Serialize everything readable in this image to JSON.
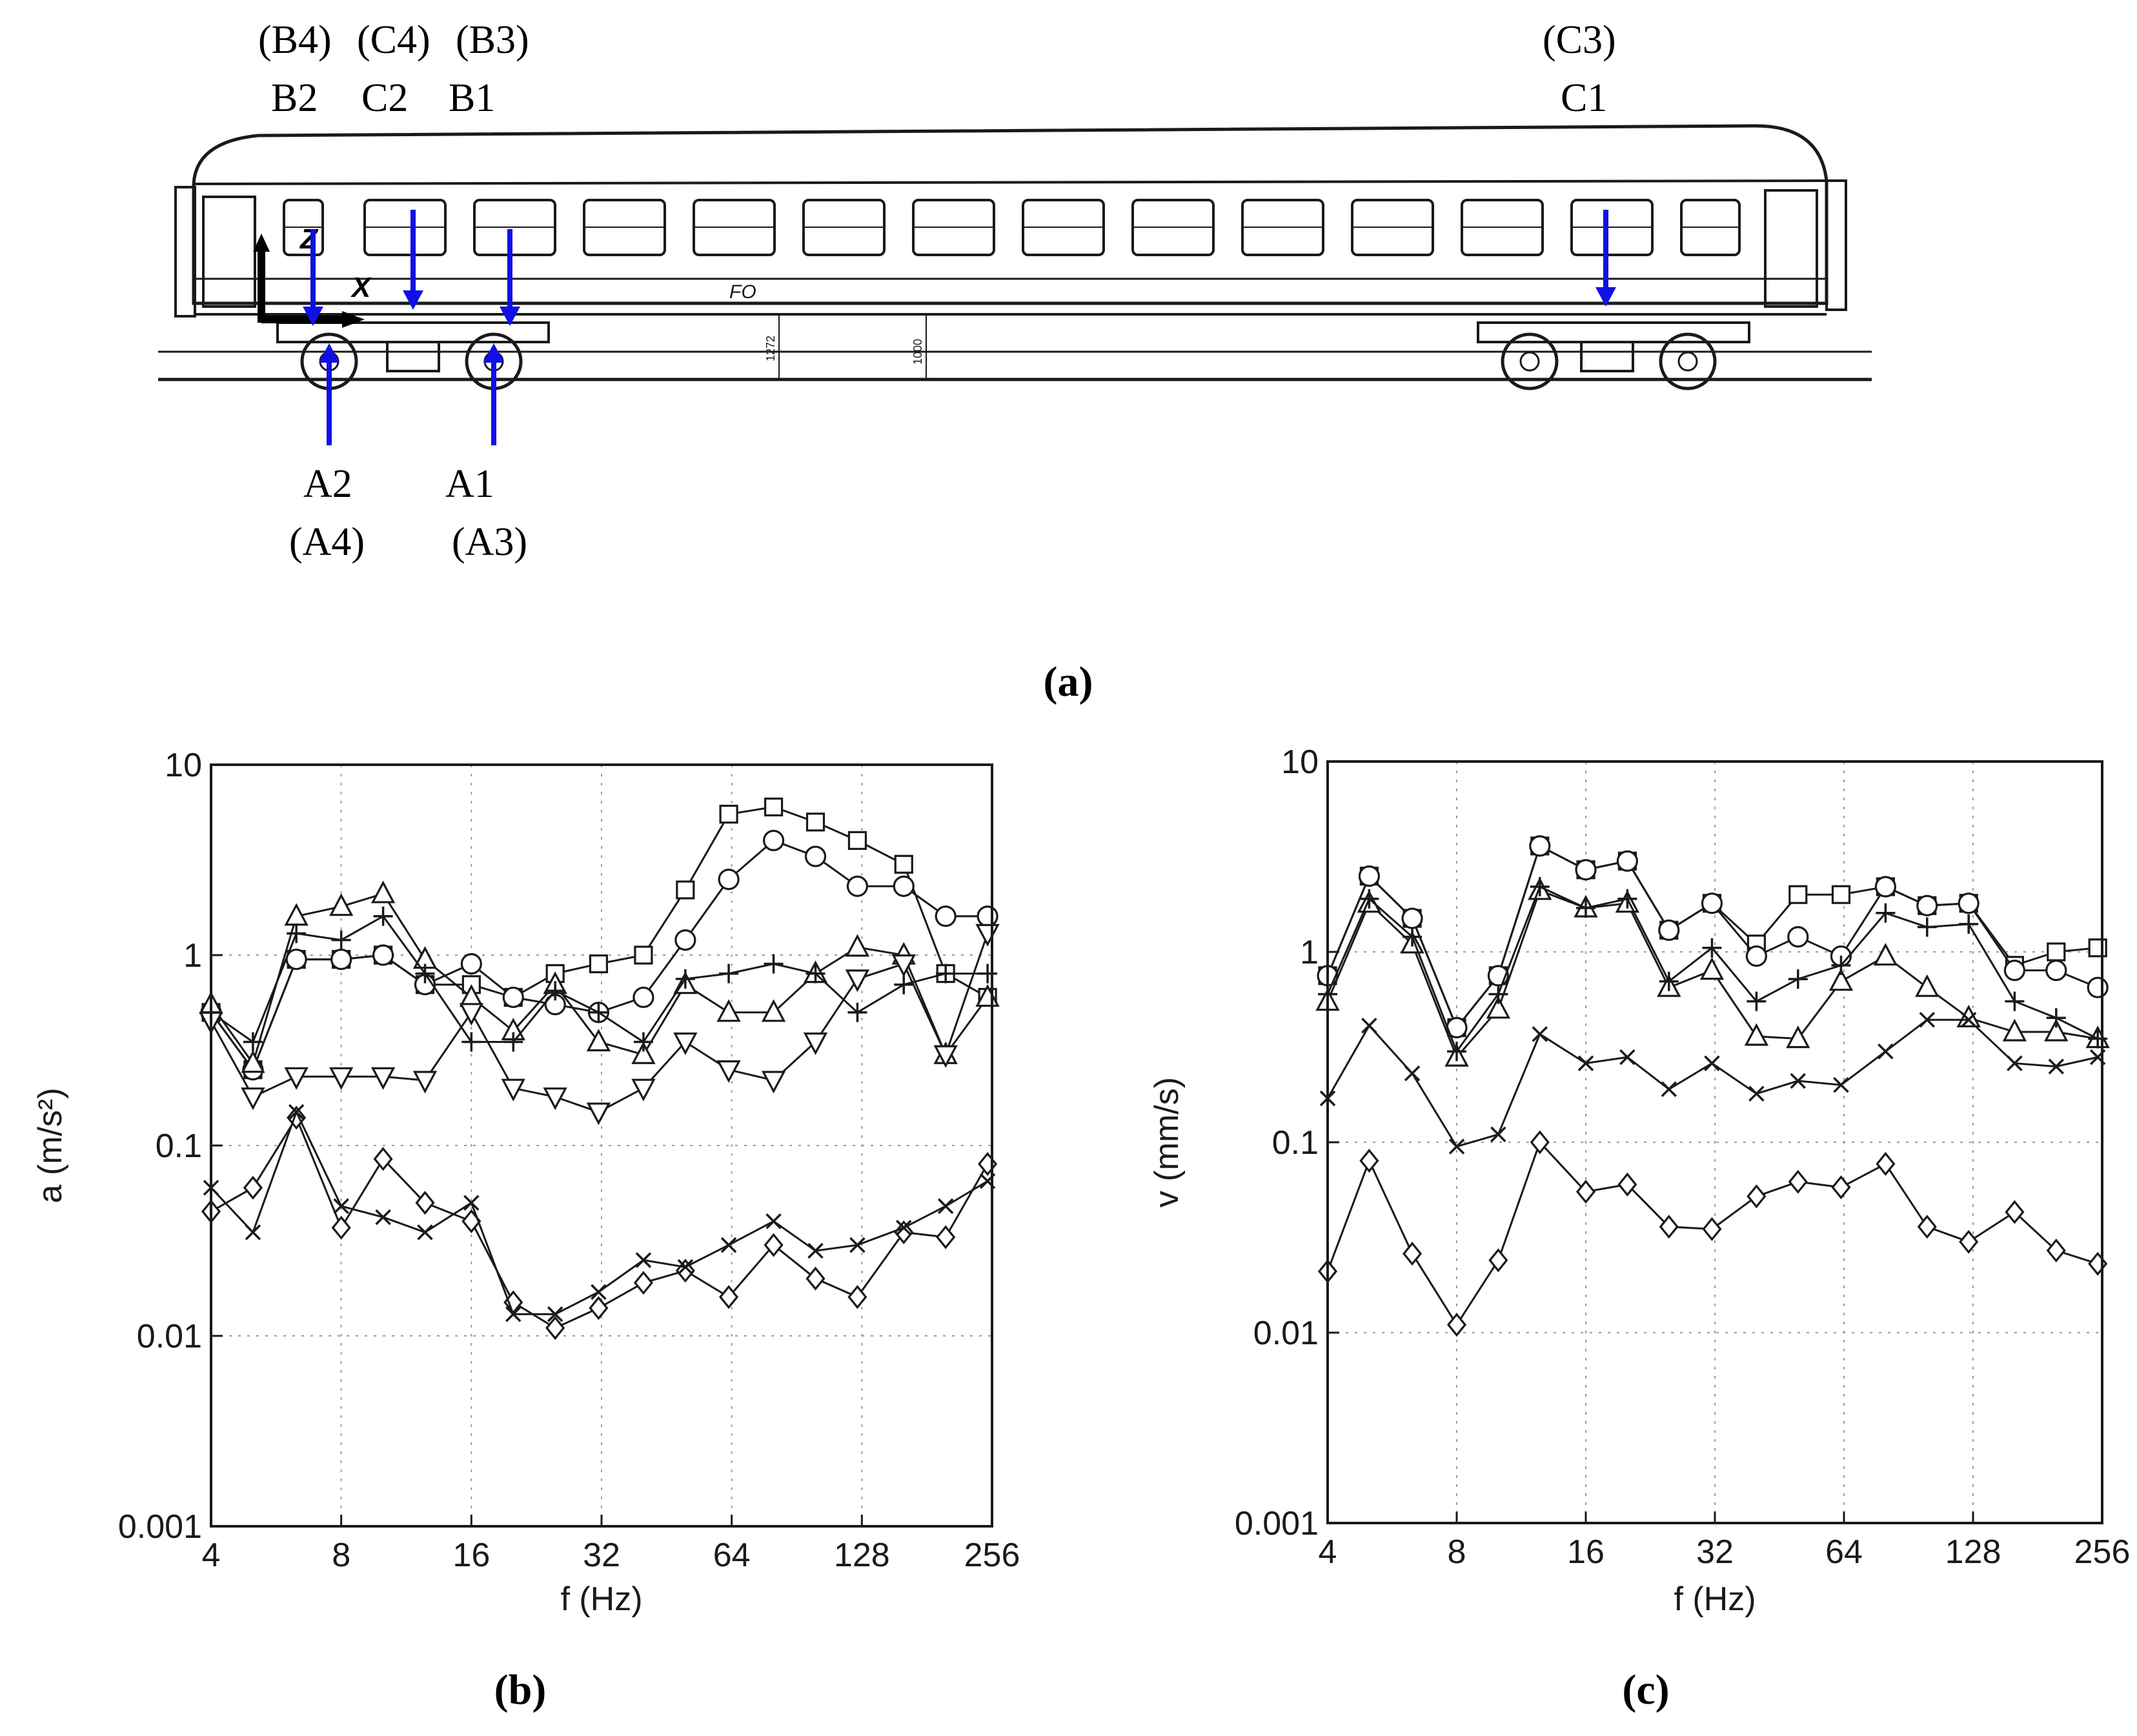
{
  "figure": {
    "panel_a_caption": "(a)",
    "panel_b_caption": "(b)",
    "panel_c_caption": "(c)",
    "carriage_text": "FO",
    "axis_x_label": "X",
    "axis_z_label": "Z",
    "dim_left_text": "1272",
    "dim_right_text": "1000",
    "sensor_labels": {
      "top_paren_b4": "(B4)",
      "top_paren_c4": "(C4)",
      "top_paren_b3": "(B3)",
      "top_b2": "B2",
      "top_c2": "C2",
      "top_b1": "B1",
      "top_paren_c3": "(C3)",
      "top_c1": "C1",
      "bottom_a2": "A2",
      "bottom_a1": "A1",
      "bottom_paren_a4": "(A4)",
      "bottom_paren_a3": "(A3)"
    },
    "colors": {
      "arrow": "#1010e6",
      "line": "#1a1a1a",
      "grid": "#9a9a9a"
    }
  },
  "chart_data": [
    {
      "id": "b",
      "type": "line",
      "xscale": "log2",
      "yscale": "log10",
      "xlabel": "f (Hz)",
      "ylabel": "a (m/s²)",
      "xlim": [
        4,
        256
      ],
      "ylim": [
        0.001,
        10
      ],
      "xticks": [
        4,
        8,
        16,
        32,
        64,
        128,
        256
      ],
      "xtick_labels": [
        "4",
        "8",
        "16",
        "32",
        "64",
        "128",
        "256"
      ],
      "yticks": [
        0.001,
        0.01,
        0.1,
        1,
        10
      ],
      "ytick_labels": [
        "0.001",
        "0.01",
        "0.1",
        "1",
        "10"
      ],
      "grid": true,
      "x": [
        4,
        5,
        6.3,
        8,
        10,
        12.5,
        16,
        20,
        25,
        31.5,
        40,
        50,
        63,
        80,
        100,
        125,
        160,
        200,
        250
      ],
      "series": [
        {
          "marker": "square",
          "values": [
            0.5,
            0.25,
            0.95,
            0.95,
            1.0,
            0.7,
            0.7,
            0.6,
            0.8,
            0.9,
            1.0,
            2.2,
            5.5,
            6.0,
            5.0,
            4.0,
            3.0,
            0.8,
            0.6
          ]
        },
        {
          "marker": "circle",
          "values": [
            0.5,
            0.25,
            0.95,
            0.95,
            1.0,
            0.7,
            0.9,
            0.6,
            0.55,
            0.5,
            0.6,
            1.2,
            2.5,
            4.0,
            3.3,
            2.3,
            2.3,
            1.6,
            1.6
          ]
        },
        {
          "marker": "triangle-up",
          "values": [
            0.55,
            0.27,
            1.6,
            1.8,
            2.1,
            0.95,
            0.6,
            0.4,
            0.7,
            0.35,
            0.3,
            0.7,
            0.5,
            0.5,
            0.8,
            1.1,
            1.0,
            0.3,
            0.6
          ]
        },
        {
          "marker": "plus",
          "values": [
            0.5,
            0.35,
            1.3,
            1.2,
            1.6,
            0.8,
            0.35,
            0.35,
            0.65,
            0.5,
            0.35,
            0.75,
            0.8,
            0.9,
            0.8,
            0.5,
            0.7,
            0.8,
            0.8
          ]
        },
        {
          "marker": "triangle-down",
          "values": [
            0.45,
            0.18,
            0.23,
            0.23,
            0.23,
            0.22,
            0.5,
            0.2,
            0.18,
            0.15,
            0.2,
            0.35,
            0.25,
            0.22,
            0.35,
            0.75,
            0.9,
            0.3,
            1.3
          ]
        },
        {
          "marker": "diamond",
          "values": [
            0.045,
            0.06,
            0.14,
            0.037,
            0.085,
            0.05,
            0.04,
            0.015,
            0.011,
            0.014,
            0.019,
            0.022,
            0.016,
            0.03,
            0.02,
            0.016,
            0.035,
            0.033,
            0.08
          ]
        },
        {
          "marker": "x",
          "values": [
            0.06,
            0.035,
            0.15,
            0.048,
            0.042,
            0.035,
            0.05,
            0.013,
            0.013,
            0.017,
            0.025,
            0.023,
            0.03,
            0.04,
            0.028,
            0.03,
            0.037,
            0.048,
            0.065
          ]
        }
      ]
    },
    {
      "id": "c",
      "type": "line",
      "xscale": "log2",
      "yscale": "log10",
      "xlabel": "f (Hz)",
      "ylabel": "v (mm/s)",
      "xlim": [
        4,
        256
      ],
      "ylim": [
        0.001,
        10
      ],
      "xticks": [
        4,
        8,
        16,
        32,
        64,
        128,
        256
      ],
      "xtick_labels": [
        "4",
        "8",
        "16",
        "32",
        "64",
        "128",
        "256"
      ],
      "yticks": [
        0.001,
        0.01,
        0.1,
        1,
        10
      ],
      "ytick_labels": [
        "0.001",
        "0.01",
        "0.1",
        "1",
        "10"
      ],
      "grid": true,
      "x": [
        4,
        5,
        6.3,
        8,
        10,
        12.5,
        16,
        20,
        25,
        31.5,
        40,
        50,
        63,
        80,
        100,
        125,
        160,
        200,
        250
      ],
      "series": [
        {
          "marker": "square",
          "values": [
            0.75,
            2.5,
            1.5,
            0.4,
            0.75,
            3.6,
            2.7,
            3.0,
            1.3,
            1.8,
            1.1,
            2.0,
            2.0,
            2.2,
            1.75,
            1.8,
            0.85,
            1.0,
            1.05
          ]
        },
        {
          "marker": "circle",
          "values": [
            0.75,
            2.5,
            1.5,
            0.4,
            0.75,
            3.6,
            2.7,
            3.0,
            1.3,
            1.8,
            0.95,
            1.2,
            0.95,
            2.2,
            1.75,
            1.8,
            0.8,
            0.8,
            0.65
          ]
        },
        {
          "marker": "triangle-up",
          "values": [
            0.55,
            1.8,
            1.1,
            0.28,
            0.5,
            2.1,
            1.7,
            1.8,
            0.65,
            0.8,
            0.36,
            0.35,
            0.7,
            0.95,
            0.65,
            0.45,
            0.38,
            0.38,
            0.35
          ]
        },
        {
          "marker": "plus",
          "values": [
            0.6,
            1.9,
            1.2,
            0.3,
            0.6,
            2.2,
            1.7,
            1.9,
            0.7,
            1.05,
            0.55,
            0.72,
            0.85,
            1.6,
            1.35,
            1.4,
            0.55,
            0.45,
            0.35
          ]
        },
        {
          "marker": "x",
          "values": [
            0.17,
            0.41,
            0.23,
            0.095,
            0.11,
            0.37,
            0.26,
            0.28,
            0.19,
            0.26,
            0.18,
            0.21,
            0.2,
            0.3,
            0.44,
            0.44,
            0.26,
            0.25,
            0.28
          ]
        },
        {
          "marker": "diamond",
          "values": [
            0.021,
            0.08,
            0.026,
            0.011,
            0.024,
            0.1,
            0.055,
            0.06,
            0.036,
            0.035,
            0.052,
            0.062,
            0.058,
            0.077,
            0.036,
            0.03,
            0.043,
            0.027,
            0.023
          ]
        }
      ]
    }
  ]
}
